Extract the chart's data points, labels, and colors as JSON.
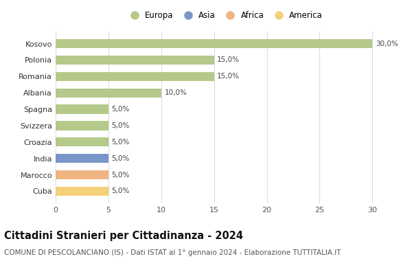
{
  "countries": [
    "Cuba",
    "Marocco",
    "India",
    "Croazia",
    "Svizzera",
    "Spagna",
    "Albania",
    "Romania",
    "Polonia",
    "Kosovo"
  ],
  "values": [
    5.0,
    5.0,
    5.0,
    5.0,
    5.0,
    5.0,
    10.0,
    15.0,
    15.0,
    30.0
  ],
  "colors": [
    "#f5d07a",
    "#f0b482",
    "#7a96c8",
    "#b5c98a",
    "#b5c98a",
    "#b5c98a",
    "#b5c98a",
    "#b5c98a",
    "#b5c98a",
    "#b5c98a"
  ],
  "legend_labels": [
    "Europa",
    "Asia",
    "Africa",
    "America"
  ],
  "legend_colors": [
    "#b5c98a",
    "#7a96c8",
    "#f0b482",
    "#f5d07a"
  ],
  "title": "Cittadini Stranieri per Cittadinanza - 2024",
  "subtitle": "COMUNE DI PESCOLANCIANO (IS) - Dati ISTAT al 1° gennaio 2024 - Elaborazione TUTTITALIA.IT",
  "xlim": [
    0,
    32
  ],
  "xticks": [
    0,
    5,
    10,
    15,
    20,
    25,
    30
  ],
  "background_color": "#ffffff",
  "grid_color": "#dddddd",
  "title_fontsize": 10.5,
  "subtitle_fontsize": 7.5,
  "label_fontsize": 7.5,
  "tick_fontsize": 8,
  "legend_fontsize": 8.5
}
